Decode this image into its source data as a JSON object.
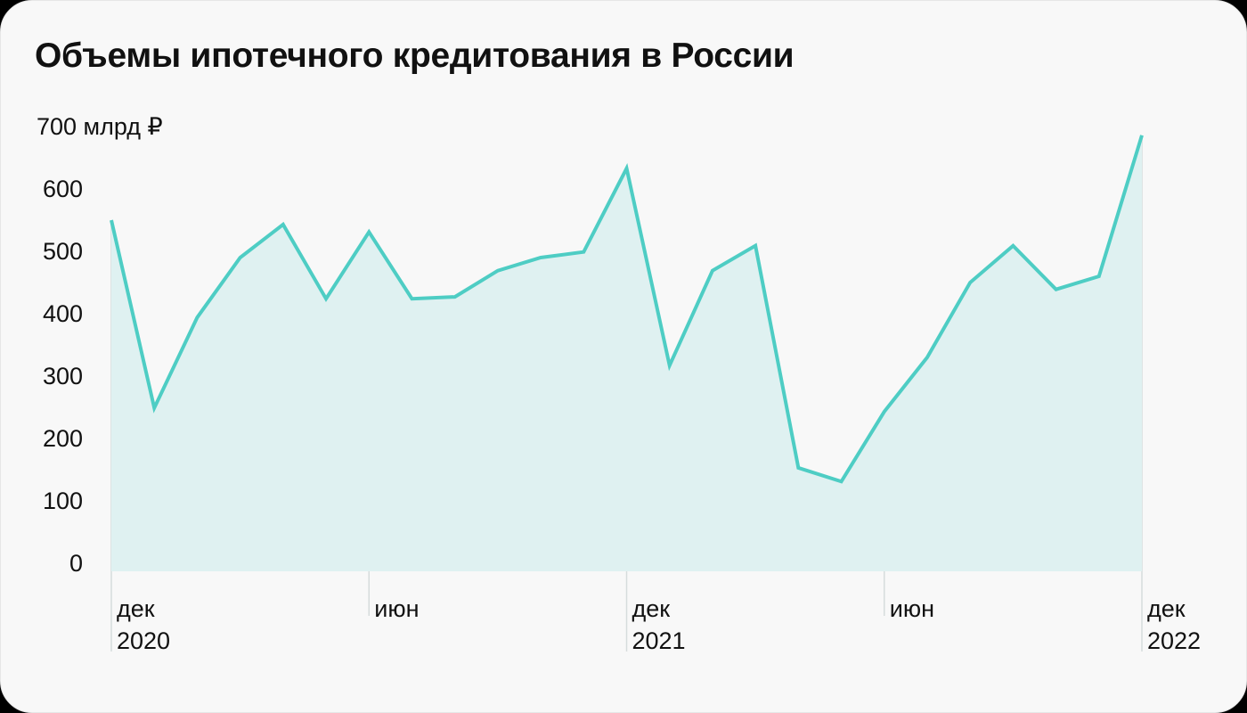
{
  "title": "Объемы ипотечного кредитования в России",
  "colors": {
    "line": "#4ecdc4",
    "fill": "#dff1f1",
    "gridline": "#d6dcdc",
    "background": "#f8f8f8",
    "text": "#111111"
  },
  "y_axis": {
    "unit_label": "700 млрд ₽",
    "ticks": [
      "700 млрд ₽",
      "600",
      "500",
      "400",
      "300",
      "200",
      "100",
      "0"
    ]
  },
  "x_axis": {
    "ticks": [
      {
        "month": "дек",
        "year": "2020"
      },
      {
        "month": "июн",
        "year": ""
      },
      {
        "month": "дек",
        "year": "2021"
      },
      {
        "month": "июн",
        "year": ""
      },
      {
        "month": "дек",
        "year": "2022"
      }
    ]
  },
  "chart_data": {
    "type": "area",
    "title": "Объемы ипотечного кредитования в России",
    "xlabel": "",
    "ylabel": "млрд ₽",
    "ylim": [
      0,
      700
    ],
    "y_ticks": [
      0,
      100,
      200,
      300,
      400,
      500,
      600,
      700
    ],
    "grid": false,
    "legend": null,
    "x": [
      "дек 2020",
      "янв 2021",
      "фев 2021",
      "мар 2021",
      "апр 2021",
      "май 2021",
      "июн 2021",
      "июл 2021",
      "авг 2021",
      "сен 2021",
      "окт 2021",
      "ноя 2021",
      "дек 2021",
      "янв 2022",
      "фев 2022",
      "мар 2022",
      "апр 2022",
      "май 2022",
      "июн 2022",
      "июл 2022",
      "авг 2022",
      "сен 2022",
      "окт 2022",
      "ноя 2022",
      "дек 2022"
    ],
    "series": [
      {
        "name": "Объем ипотечного кредитования, млрд ₽",
        "values": [
          550,
          249,
          394,
          490,
          543,
          424,
          531,
          424,
          427,
          469,
          490,
          499,
          633,
          317,
          469,
          509,
          153,
          131,
          243,
          330,
          450,
          509,
          439,
          460,
          686
        ]
      }
    ],
    "x_tick_labels": [
      "дек 2020",
      "июн",
      "дек 2021",
      "июн",
      "дек 2022"
    ]
  }
}
